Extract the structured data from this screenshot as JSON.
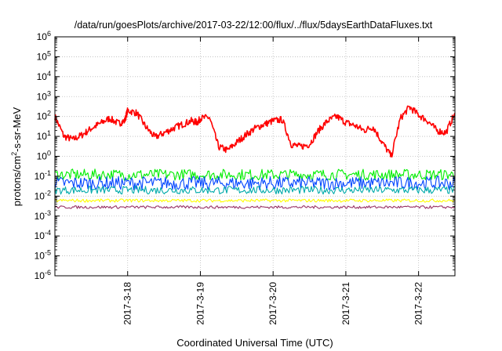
{
  "chart_data": {
    "type": "line",
    "title": "/data/run/goesPlots/archive/2017-03-22/12:00/flux/../flux/5daysEarthDataFluxes.txt",
    "xlabel": "Coordinated Universal Time (UTC)",
    "ylabel": {
      "base": "protons/cm",
      "sup": "2",
      "rest": "-s-sr-MeV"
    },
    "yscale": "log",
    "ylim": [
      1e-06,
      1000000.0
    ],
    "y_ticks": [
      {
        "exp": "-6"
      },
      {
        "exp": "-5"
      },
      {
        "exp": "-4"
      },
      {
        "exp": "-3"
      },
      {
        "exp": "-2"
      },
      {
        "exp": "-1"
      },
      {
        "exp": "0"
      },
      {
        "exp": "1"
      },
      {
        "exp": "2"
      },
      {
        "exp": "3"
      },
      {
        "exp": "4"
      },
      {
        "exp": "5"
      },
      {
        "exp": "6"
      }
    ],
    "y_tick_base": "10",
    "x_range": [
      "2017-03-17 00:00",
      "2017-03-22 12:00"
    ],
    "x_ticks": [
      "2017-3-18",
      "2017-3-19",
      "2017-3-20",
      "2017-3-21",
      "2017-3-22"
    ],
    "grid": true,
    "series": [
      {
        "color": "#ff0000",
        "x": [
          "2017-03-17 00:00",
          "2017-03-17 03:00",
          "2017-03-17 06:00",
          "2017-03-17 09:00",
          "2017-03-17 12:00",
          "2017-03-17 15:00",
          "2017-03-17 18:00",
          "2017-03-17 21:00",
          "2017-03-17 23:00",
          "2017-03-18 00:00",
          "2017-03-18 03:00",
          "2017-03-18 06:00",
          "2017-03-18 09:00",
          "2017-03-18 12:00",
          "2017-03-18 15:00",
          "2017-03-18 18:00",
          "2017-03-18 21:00",
          "2017-03-18 23:00",
          "2017-03-19 00:00",
          "2017-03-19 03:00",
          "2017-03-19 06:00",
          "2017-03-19 09:00",
          "2017-03-19 12:00",
          "2017-03-19 15:00",
          "2017-03-19 18:00",
          "2017-03-19 21:00",
          "2017-03-20 00:00",
          "2017-03-20 03:00",
          "2017-03-20 06:00",
          "2017-03-20 09:00",
          "2017-03-20 12:00",
          "2017-03-20 15:00",
          "2017-03-20 18:00",
          "2017-03-20 21:00",
          "2017-03-21 00:00",
          "2017-03-21 03:00",
          "2017-03-21 06:00",
          "2017-03-21 09:00",
          "2017-03-21 12:00",
          "2017-03-21 15:00",
          "2017-03-21 18:00",
          "2017-03-21 21:00",
          "2017-03-22 00:00",
          "2017-03-22 03:00",
          "2017-03-22 06:00",
          "2017-03-22 09:00",
          "2017-03-22 12:00"
        ],
        "values": [
          100,
          10,
          7,
          12,
          25,
          45,
          80,
          45,
          60,
          200,
          150,
          30,
          9,
          15,
          25,
          40,
          60,
          50,
          80,
          90,
          3,
          2,
          5,
          12,
          25,
          40,
          60,
          70,
          4,
          3,
          4,
          20,
          60,
          100,
          50,
          35,
          20,
          30,
          5,
          1,
          80,
          300,
          120,
          60,
          20,
          15,
          150
        ]
      },
      {
        "color": "#00ee00",
        "x": [
          "2017-03-17 00:00",
          "2017-03-22 12:00"
        ],
        "values": [
          0.12,
          0.12
        ]
      },
      {
        "color": "#0044ff",
        "x": [
          "2017-03-17 00:00",
          "2017-03-22 12:00"
        ],
        "values": [
          0.045,
          0.045
        ]
      },
      {
        "color": "#00aaaa",
        "x": [
          "2017-03-17 00:00",
          "2017-03-22 12:00"
        ],
        "values": [
          0.02,
          0.02
        ]
      },
      {
        "color": "#ffff00",
        "x": [
          "2017-03-17 00:00",
          "2017-03-22 12:00"
        ],
        "values": [
          0.006,
          0.006
        ]
      },
      {
        "color": "#993366",
        "x": [
          "2017-03-17 00:00",
          "2017-03-22 12:00"
        ],
        "values": [
          0.0028,
          0.0028
        ]
      }
    ]
  }
}
